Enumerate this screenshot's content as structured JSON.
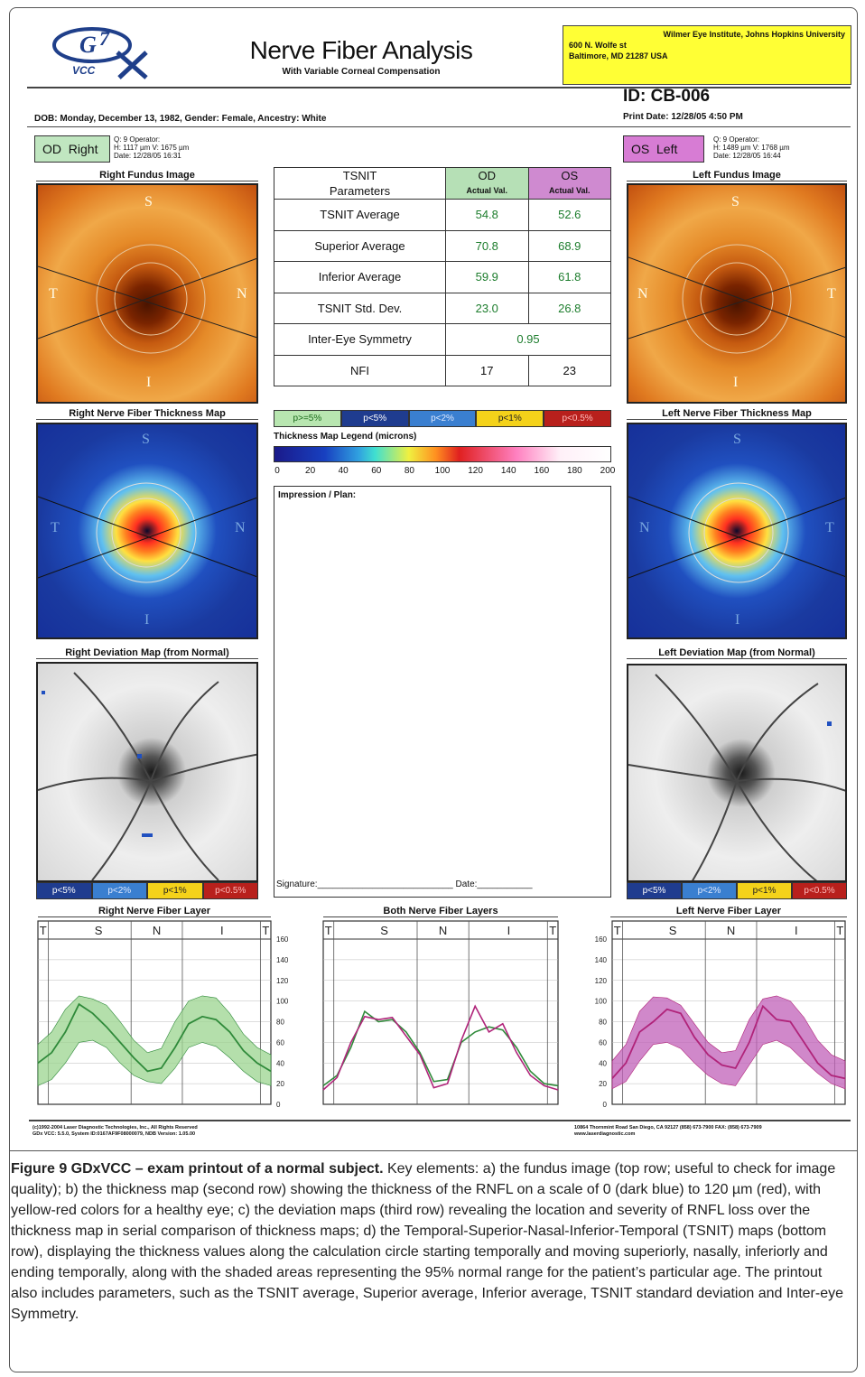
{
  "header": {
    "title": "Nerve Fiber Analysis",
    "subtitle": "With Variable Corneal Compensation",
    "logo_text": "VCC",
    "institution_line1": "Wilmer Eye Institute, Johns Hopkins University",
    "institution_line2": "600 N. Wolfe st",
    "institution_line3": "Baltimore, MD 21287 USA",
    "id": "ID: CB-006",
    "print_date": "Print Date: 12/28/05 4:50 PM",
    "dob": "DOB: Monday, December 13, 1982, Gender: Female, Ancestry: White"
  },
  "od": {
    "badge_eye": "OD",
    "badge_side": "Right",
    "meta1": "Q: 9        Operator:",
    "meta2": "H: 1117 µm  V: 1675 µm",
    "meta3": "Date: 12/28/05 16:31",
    "fundus_title": "Right Fundus Image",
    "thickness_title": "Right Nerve Fiber Thickness Map",
    "deviation_title": "Right Deviation Map (from Normal)",
    "layer_title": "Right Nerve Fiber Layer"
  },
  "os": {
    "badge_eye": "OS",
    "badge_side": "Left",
    "meta1": "Q: 9        Operator:",
    "meta2": "H: 1489 µm  V: 1768 µm",
    "meta3": "Date: 12/28/05 16:44",
    "fundus_title": "Left Fundus Image",
    "thickness_title": "Left Nerve Fiber Thickness Map",
    "deviation_title": "Left Deviation Map (from Normal)",
    "layer_title": "Left Nerve Fiber Layer"
  },
  "both_layer_title": "Both Nerve Fiber Layers",
  "quadrant_labels": {
    "s": "S",
    "n": "N",
    "t": "T",
    "i": "I"
  },
  "table": {
    "header_param_line1": "TSNIT",
    "header_param_line2": "Parameters",
    "od_label": "OD",
    "os_label": "OS",
    "actual_val": "Actual Val.",
    "rows": [
      {
        "label": "TSNIT Average",
        "od": "54.8",
        "os": "52.6"
      },
      {
        "label": "Superior Average",
        "od": "70.8",
        "os": "68.9"
      },
      {
        "label": "Inferior Average",
        "od": "59.9",
        "os": "61.8"
      },
      {
        "label": "TSNIT Std. Dev.",
        "od": "23.0",
        "os": "26.8"
      }
    ],
    "symmetry_label": "Inter-Eye Symmetry",
    "symmetry_value": "0.95",
    "nfi_label": "NFI",
    "nfi_od": "17",
    "nfi_os": "23"
  },
  "prob_legend": [
    {
      "label": "p>=5%",
      "bg": "#b8e6b0",
      "color": "#1a6a1a"
    },
    {
      "label": "p<5%",
      "bg": "#1f3c8f",
      "color": "#ffffff"
    },
    {
      "label": "p<2%",
      "bg": "#3a7fd0",
      "color": "#dfe9ff"
    },
    {
      "label": "p<1%",
      "bg": "#f4d21a",
      "color": "#222222"
    },
    {
      "label": "p<0.5%",
      "bg": "#b8201c",
      "color": "#ffbcbc"
    }
  ],
  "dev_legend": [
    {
      "label": "p<5%",
      "bg": "#1f3c8f",
      "color": "#ffffff"
    },
    {
      "label": "p<2%",
      "bg": "#3a7fd0",
      "color": "#dfe9ff"
    },
    {
      "label": "p<1%",
      "bg": "#f4d21a",
      "color": "#222222"
    },
    {
      "label": "p<0.5%",
      "bg": "#b8201c",
      "color": "#ffbcbc"
    }
  ],
  "colorbar": {
    "title": "Thickness Map Legend (microns)",
    "ticks": [
      "0",
      "20",
      "40",
      "60",
      "80",
      "100",
      "120",
      "140",
      "160",
      "180",
      "200"
    ]
  },
  "impression_label": "Impression / Plan:",
  "signature_line": "Signature:___________________________  Date:___________",
  "footer": {
    "left1": "(c)1992-2004 Laser Diagnostic Technologies, Inc., All Rights Reserved",
    "left2": "GDx VCC: 5.5.0, System ID:0167AF9F08000079, NDB Version: 1.05.00",
    "right1": "10864 Thornmint Road  San Diego, CA 92127  (858) 673-7900  FAX: (858) 673-7909",
    "right2": "www.laserdiagnostic.com"
  },
  "caption": {
    "bold": "Figure 9 GDxVCC – exam printout of a normal subject.",
    "text": " Key elements: a) the fundus image (top row; useful to check for image quality); b) the thickness map (second row) showing the thickness of the RNFL on a scale of 0 (dark blue) to 120 µm (red), with yellow-red colors for a healthy eye; c) the deviation maps (third row) revealing the location and severity of RNFL loss over the thickness map in serial comparison of thickness maps; d) the Temporal-Superior-Nasal-Inferior-Temporal (TSNIT) maps (bottom row), displaying the thickness values along the calculation circle starting temporally and moving superiorly, nasally, inferiorly and ending temporally, along with the shaded areas representing the 95% normal range for the patient’s particular age. The printout also includes parameters, such as the TSNIT average, Superior average, Inferior average, TSNIT standard deviation and Inter-eye Symmetry."
  },
  "colors": {
    "od": "#2f8a3a",
    "od_band": "#9bd48f",
    "os": "#b0247a",
    "os_band": "#c060b8"
  },
  "chart_data": [
    {
      "type": "line",
      "title": "Right Nerve Fiber Layer",
      "x_labels": [
        "T",
        "S",
        "N",
        "I",
        "T"
      ],
      "ylim": [
        0,
        160
      ],
      "yticks": [
        0,
        20,
        40,
        60,
        80,
        100,
        120,
        140,
        160
      ],
      "series": [
        {
          "name": "OD",
          "values": [
            40,
            50,
            70,
            97,
            88,
            75,
            60,
            45,
            32,
            35,
            55,
            78,
            85,
            82,
            70,
            52,
            40,
            32
          ]
        },
        {
          "name": "normal-upper",
          "values": [
            58,
            70,
            92,
            105,
            102,
            96,
            80,
            62,
            50,
            54,
            80,
            100,
            105,
            103,
            88,
            68,
            55,
            48
          ]
        },
        {
          "name": "normal-lower",
          "values": [
            18,
            24,
            40,
            60,
            62,
            55,
            40,
            28,
            22,
            20,
            35,
            55,
            60,
            56,
            45,
            32,
            22,
            18
          ]
        }
      ]
    },
    {
      "type": "line",
      "title": "Both Nerve Fiber Layers",
      "x_labels": [
        "T",
        "S",
        "N",
        "I",
        "T"
      ],
      "ylim": [
        0,
        160
      ],
      "series": [
        {
          "name": "OD",
          "values": [
            18,
            28,
            55,
            90,
            80,
            82,
            70,
            50,
            22,
            24,
            60,
            70,
            75,
            72,
            55,
            32,
            20,
            18
          ]
        },
        {
          "name": "OS",
          "values": [
            14,
            26,
            60,
            85,
            82,
            84,
            66,
            48,
            16,
            20,
            62,
            95,
            70,
            78,
            50,
            28,
            18,
            14
          ]
        }
      ]
    },
    {
      "type": "line",
      "title": "Left Nerve Fiber Layer",
      "x_labels": [
        "T",
        "S",
        "N",
        "I",
        "T"
      ],
      "ylim": [
        0,
        160
      ],
      "series": [
        {
          "name": "OS",
          "values": [
            25,
            40,
            70,
            80,
            92,
            88,
            65,
            48,
            38,
            35,
            60,
            95,
            82,
            80,
            60,
            40,
            28,
            25
          ]
        },
        {
          "name": "normal-upper",
          "values": [
            42,
            58,
            90,
            104,
            103,
            96,
            78,
            60,
            50,
            52,
            82,
            102,
            105,
            100,
            84,
            62,
            48,
            42
          ]
        },
        {
          "name": "normal-lower",
          "values": [
            15,
            22,
            42,
            58,
            60,
            54,
            40,
            28,
            20,
            18,
            38,
            58,
            62,
            55,
            42,
            30,
            20,
            15
          ]
        }
      ]
    }
  ]
}
